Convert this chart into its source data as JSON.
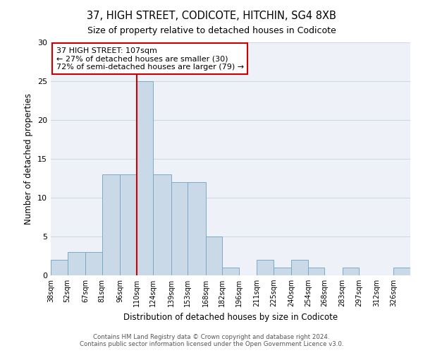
{
  "title": "37, HIGH STREET, CODICOTE, HITCHIN, SG4 8XB",
  "subtitle": "Size of property relative to detached houses in Codicote",
  "xlabel": "Distribution of detached houses by size in Codicote",
  "ylabel": "Number of detached properties",
  "categories": [
    "38sqm",
    "52sqm",
    "67sqm",
    "81sqm",
    "96sqm",
    "110sqm",
    "124sqm",
    "139sqm",
    "153sqm",
    "168sqm",
    "182sqm",
    "196sqm",
    "211sqm",
    "225sqm",
    "240sqm",
    "254sqm",
    "268sqm",
    "283sqm",
    "297sqm",
    "312sqm",
    "326sqm"
  ],
  "values": [
    2,
    3,
    3,
    13,
    13,
    25,
    13,
    12,
    12,
    5,
    1,
    0,
    2,
    1,
    2,
    1,
    0,
    1,
    0,
    0,
    1
  ],
  "bar_color": "#c9d9e8",
  "bar_edge_color": "#7aaac8",
  "grid_color": "#d0d8e4",
  "background_color": "#eef2f8",
  "vline_color": "#cc0000",
  "vline_label": "37 HIGH STREET: 107sqm",
  "annotation_line1": "← 27% of detached houses are smaller (30)",
  "annotation_line2": "72% of semi-detached houses are larger (79) →",
  "box_edge_color": "#cc0000",
  "ylim": [
    0,
    30
  ],
  "yticks": [
    0,
    5,
    10,
    15,
    20,
    25,
    30
  ],
  "footer1": "Contains HM Land Registry data © Crown copyright and database right 2024.",
  "footer2": "Contains public sector information licensed under the Open Government Licence v3.0.",
  "bin_edges": [
    38,
    52,
    67,
    81,
    96,
    110,
    124,
    139,
    153,
    168,
    182,
    196,
    211,
    225,
    240,
    254,
    268,
    283,
    297,
    312,
    326,
    340
  ]
}
